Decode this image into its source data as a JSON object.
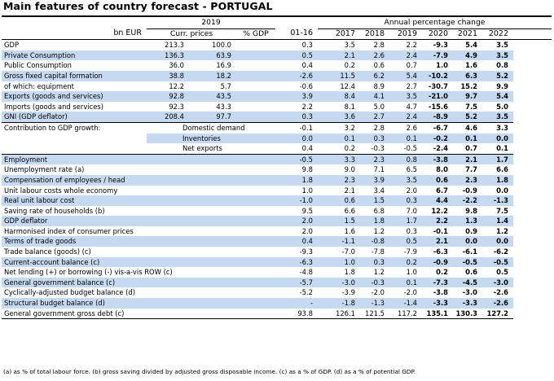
{
  "title": "Main features of country forecast - PORTUGAL",
  "header": {
    "year_group": "2019",
    "annual_group": "Annual percentage change",
    "col_labels": [
      "bn EUR",
      "Curr. prices",
      "% GDP",
      "01-16",
      "2017",
      "2018",
      "2019",
      "2020",
      "2021",
      "2022"
    ]
  },
  "rows": [
    {
      "label": "GDP",
      "curr": "213.3",
      "gdp": "100.0",
      "v": [
        "0.3",
        "3.5",
        "2.8",
        "2.2",
        "-9.3",
        "5.4",
        "3.5"
      ],
      "shade": false
    },
    {
      "label": "Private Consumption",
      "curr": "136.3",
      "gdp": "63.9",
      "v": [
        "0.5",
        "2.1",
        "2.6",
        "2.4",
        "-7.9",
        "4.9",
        "3.5"
      ],
      "shade": true
    },
    {
      "label": "Public Consumption",
      "curr": "36.0",
      "gdp": "16.9",
      "v": [
        "0.4",
        "0.2",
        "0.6",
        "0.7",
        "1.0",
        "1.6",
        "0.8"
      ],
      "shade": false
    },
    {
      "label": "Gross fixed capital formation",
      "curr": "38.8",
      "gdp": "18.2",
      "v": [
        "-2.6",
        "11.5",
        "6.2",
        "5.4",
        "-10.2",
        "6.3",
        "5.2"
      ],
      "shade": true
    },
    {
      "label": "of which: equipment",
      "curr": "12.2",
      "gdp": "5.7",
      "v": [
        "-0.6",
        "12.4",
        "8.9",
        "2.7",
        "-30.7",
        "15.2",
        "9.9"
      ],
      "shade": false
    },
    {
      "label": "Exports (goods and services)",
      "curr": "92.8",
      "gdp": "43.5",
      "v": [
        "3.9",
        "8.4",
        "4.1",
        "3.5",
        "-21.0",
        "9.7",
        "5.4"
      ],
      "shade": true
    },
    {
      "label": "Imports (goods and services)",
      "curr": "92.3",
      "gdp": "43.3",
      "v": [
        "2.2",
        "8.1",
        "5.0",
        "4.7",
        "-15.6",
        "7.5",
        "5.0"
      ],
      "shade": false
    },
    {
      "label": "GNI (GDP deflator)",
      "curr": "208.4",
      "gdp": "97.7",
      "v": [
        "0.3",
        "3.6",
        "2.7",
        "2.4",
        "-8.9",
        "5.2",
        "3.5"
      ],
      "shade": true
    }
  ],
  "contrib": {
    "label": "Contribution to GDP growth:",
    "rows": [
      {
        "sub": "Domestic demand",
        "v": [
          "-0.1",
          "3.2",
          "2.8",
          "2.6",
          "-6.7",
          "4.6",
          "3.3"
        ],
        "shade": false
      },
      {
        "sub": "Inventories",
        "v": [
          "0.0",
          "0.1",
          "0.3",
          "0.1",
          "-0.2",
          "0.1",
          "0.0"
        ],
        "shade": true
      },
      {
        "sub": "Net exports",
        "v": [
          "0.4",
          "0.2",
          "-0.3",
          "-0.5",
          "-2.4",
          "0.7",
          "0.1"
        ],
        "shade": false
      }
    ]
  },
  "rows2": [
    {
      "label": "Employment",
      "v": [
        "-0.5",
        "3.3",
        "2.3",
        "0.8",
        "-3.8",
        "2.1",
        "1.7"
      ],
      "shade": true
    },
    {
      "label": "Unemployment rate (a)",
      "v": [
        "9.8",
        "9.0",
        "7.1",
        "6.5",
        "8.0",
        "7.7",
        "6.6"
      ],
      "shade": false
    },
    {
      "label": "Compensation of employees / head",
      "v": [
        "1.8",
        "2.3",
        "3.9",
        "3.5",
        "0.6",
        "2.3",
        "1.8"
      ],
      "shade": true
    },
    {
      "label": "Unit labour costs whole economy",
      "v": [
        "1.0",
        "2.1",
        "3.4",
        "2.0",
        "6.7",
        "-0.9",
        "0.0"
      ],
      "shade": false
    },
    {
      "label": "Real unit labour cost",
      "v": [
        "-1.0",
        "0.6",
        "1.5",
        "0.3",
        "4.4",
        "-2.2",
        "-1.3"
      ],
      "shade": true
    },
    {
      "label": "Saving rate of households (b)",
      "v": [
        "9.5",
        "6.6",
        "6.8",
        "7.0",
        "12.2",
        "9.8",
        "7.5"
      ],
      "shade": false
    },
    {
      "label": "GDP deflator",
      "v": [
        "2.0",
        "1.5",
        "1.8",
        "1.7",
        "2.2",
        "1.3",
        "1.4"
      ],
      "shade": true
    },
    {
      "label": "Harmonised index of consumer prices",
      "v": [
        "2.0",
        "1.6",
        "1.2",
        "0.3",
        "-0.1",
        "0.9",
        "1.2"
      ],
      "shade": false
    },
    {
      "label": "Terms of trade goods",
      "v": [
        "0.4",
        "-1.1",
        "-0.8",
        "0.5",
        "2.1",
        "0.0",
        "0.0"
      ],
      "shade": true
    },
    {
      "label": "Trade balance (goods) (c)",
      "v": [
        "-9.3",
        "-7.0",
        "-7.8",
        "-7.9",
        "-6.3",
        "-6.1",
        "-6.2"
      ],
      "shade": false
    },
    {
      "label": "Current-account balance (c)",
      "v": [
        "-6.3",
        "1.0",
        "0.3",
        "0.2",
        "-0.9",
        "-0.5",
        "-0.5"
      ],
      "shade": true
    },
    {
      "label": "Net lending (+) or borrowing (-) vis-a-vis ROW (c)",
      "v": [
        "-4.8",
        "1.8",
        "1.2",
        "1.0",
        "0.2",
        "0.6",
        "0.5"
      ],
      "shade": false
    },
    {
      "label": "General government balance (c)",
      "v": [
        "-5.7",
        "-3.0",
        "-0.3",
        "0.1",
        "-7.3",
        "-4.5",
        "-3.0"
      ],
      "shade": true
    },
    {
      "label": "Cyclically-adjusted budget balance (d)",
      "v": [
        "-5.2",
        "-3.9",
        "-2.0",
        "-2.0",
        "-3.8",
        "-3.0",
        "-2.6"
      ],
      "shade": false
    },
    {
      "label": "Structural budget balance (d)",
      "v": [
        "-",
        "-1.8",
        "-1.3",
        "-1.4",
        "-3.3",
        "-3.3",
        "-2.6"
      ],
      "shade": true
    },
    {
      "label": "General government gross debt (c)",
      "v": [
        "93.8",
        "126.1",
        "121.5",
        "117.2",
        "135.1",
        "130.3",
        "127.2"
      ],
      "shade": false
    }
  ],
  "footnote": "(a) as % of total labour force. (b) gross saving divided by adjusted gross disposable income. (c) as a % of GDP. (d) as a % of potential GDP.",
  "colors": {
    "shade": "#c5d9f1"
  }
}
